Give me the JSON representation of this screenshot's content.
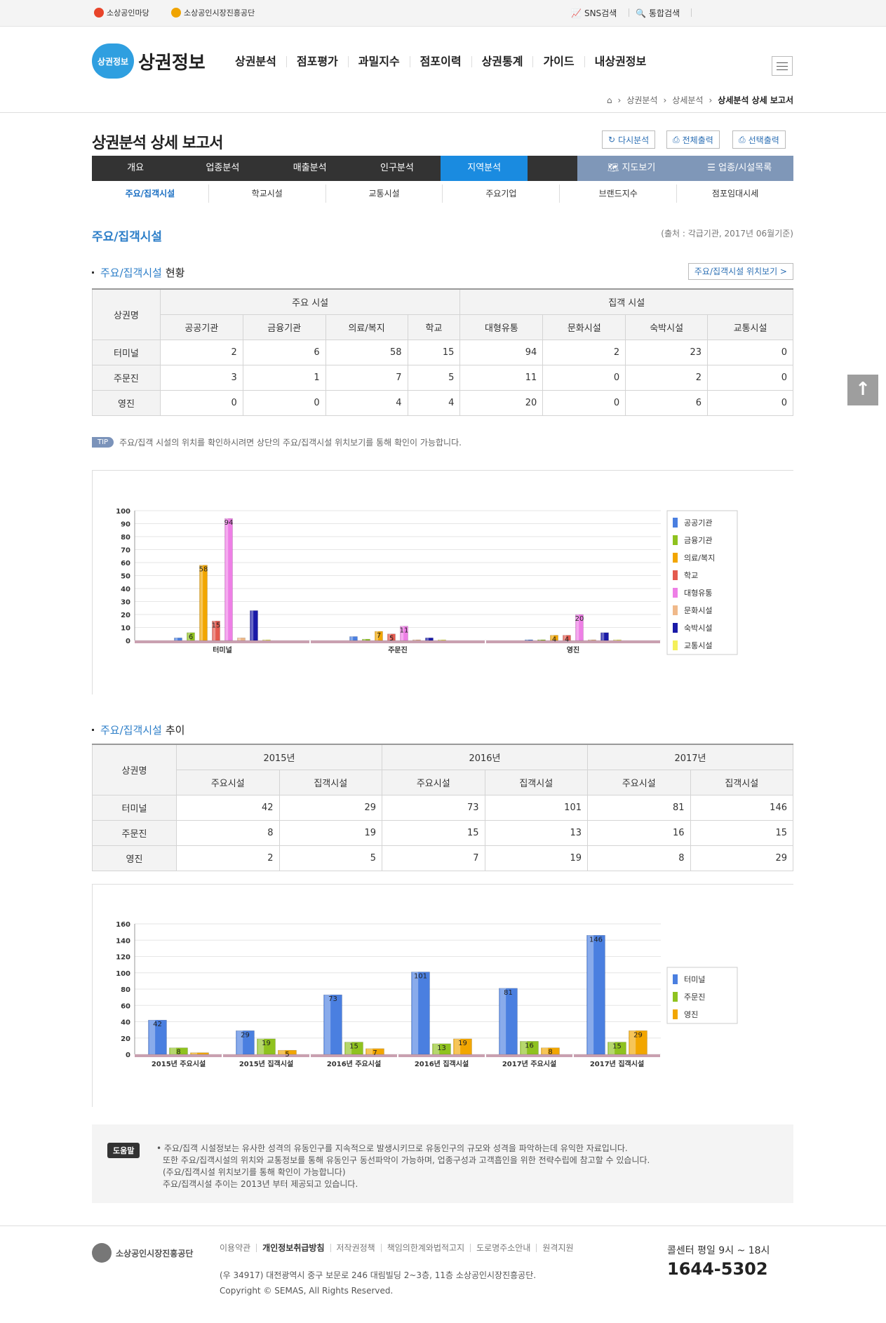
{
  "topbar": {
    "logo1": "소상공인마당",
    "logo2": "소상공인시장진흥공단",
    "sns": "SNS검색",
    "search": "통합검색"
  },
  "header": {
    "badge": "상권정보",
    "brand": "상권정보",
    "menu": [
      "상권분석",
      "점포평가",
      "과밀지수",
      "점포이력",
      "상권통계",
      "가이드",
      "내상권정보"
    ]
  },
  "breadcrumb": [
    "상권분석",
    "상세분석",
    "상세분석 상세 보고서"
  ],
  "page_title": "상권분석 상세 보고서",
  "buttons": {
    "reanalyze": "다시분석",
    "print_all": "전체출력",
    "print_sel": "선택출력"
  },
  "tabs": [
    "개요",
    "업종분석",
    "매출분석",
    "인구분석",
    "지역분석"
  ],
  "tabs_right": [
    "지도보기",
    "업종/시설목록"
  ],
  "subtabs": [
    "주요/집객시설",
    "학교시설",
    "교통시설",
    "주요기업",
    "브랜드지수",
    "점포임대시세"
  ],
  "section": {
    "title": "주요/집객시설",
    "source": "(출처 : 각급기관, 2017년 06월기준)"
  },
  "status": {
    "title_b": "주요/집객시설",
    "title_r": "현황",
    "link": "주요/집객시설 위치보기 >",
    "head_name": "상권명",
    "group1": "주요 시설",
    "group2": "집객 시설",
    "cols": [
      "공공기관",
      "금융기관",
      "의료/복지",
      "학교",
      "대형유통",
      "문화시설",
      "숙박시설",
      "교통시설"
    ],
    "rows": [
      {
        "name": "터미널",
        "vals": [
          "2",
          "6",
          "58",
          "15",
          "94",
          "2",
          "23",
          "0"
        ]
      },
      {
        "name": "주문진",
        "vals": [
          "3",
          "1",
          "7",
          "5",
          "11",
          "0",
          "2",
          "0"
        ]
      },
      {
        "name": "영진",
        "vals": [
          "0",
          "0",
          "4",
          "4",
          "20",
          "0",
          "6",
          "0"
        ]
      }
    ]
  },
  "tip": {
    "badge": "TIP",
    "text": "주요/집객 시설의 위치를 확인하시려면 상단의 주요/집객시설 위치보기를 통해 확인이 가능합니다."
  },
  "trend": {
    "title_b": "주요/집객시설",
    "title_r": "추이",
    "head_name": "상권명",
    "years": [
      "2015년",
      "2016년",
      "2017년"
    ],
    "sub": [
      "주요시설",
      "집객시설"
    ],
    "rows": [
      {
        "name": "터미널",
        "vals": [
          "42",
          "29",
          "73",
          "101",
          "81",
          "146"
        ]
      },
      {
        "name": "주문진",
        "vals": [
          "8",
          "19",
          "15",
          "13",
          "16",
          "15"
        ]
      },
      {
        "name": "영진",
        "vals": [
          "2",
          "5",
          "7",
          "19",
          "8",
          "29"
        ]
      }
    ]
  },
  "chart_data": [
    {
      "type": "bar",
      "categories": [
        "터미널",
        "주문진",
        "영진"
      ],
      "ylim": [
        0,
        100
      ],
      "yticks": [
        0,
        10,
        20,
        30,
        40,
        50,
        60,
        70,
        80,
        90,
        100
      ],
      "legend": "right",
      "grid": true,
      "series": [
        {
          "name": "공공기관",
          "color": "#4a7fe0",
          "values": [
            2,
            3,
            0
          ]
        },
        {
          "name": "금융기관",
          "color": "#8fc21f",
          "values": [
            6,
            1,
            0
          ]
        },
        {
          "name": "의료/복지",
          "color": "#f2a600",
          "values": [
            58,
            7,
            4
          ]
        },
        {
          "name": "학교",
          "color": "#e45a4e",
          "values": [
            15,
            5,
            4
          ]
        },
        {
          "name": "대형유통",
          "color": "#ee7fe6",
          "values": [
            94,
            11,
            20
          ]
        },
        {
          "name": "문화시설",
          "color": "#f0b98a",
          "values": [
            2,
            0,
            0
          ]
        },
        {
          "name": "숙박시설",
          "color": "#1a1aa8",
          "values": [
            23,
            2,
            6
          ]
        },
        {
          "name": "교통시설",
          "color": "#f4f05a",
          "values": [
            0,
            0,
            0
          ]
        }
      ],
      "labels": [
        [
          null,
          6,
          58,
          15,
          94,
          null,
          null,
          null
        ],
        [
          null,
          null,
          7,
          5,
          11,
          null,
          null,
          null
        ],
        [
          null,
          null,
          4,
          4,
          20,
          null,
          null,
          null
        ]
      ]
    },
    {
      "type": "bar",
      "categories": [
        "2015년 주요시설",
        "2015년 집객시설",
        "2016년 주요시설",
        "2016년 집객시설",
        "2017년 주요시설",
        "2017년 집객시설"
      ],
      "ylim": [
        0,
        160
      ],
      "yticks": [
        0,
        20,
        40,
        60,
        80,
        100,
        120,
        140,
        160
      ],
      "legend": "right",
      "grid": true,
      "series": [
        {
          "name": "터미널",
          "color": "#4a7fe0",
          "values": [
            42,
            29,
            73,
            101,
            81,
            146
          ]
        },
        {
          "name": "주문진",
          "color": "#8fc21f",
          "values": [
            8,
            19,
            15,
            13,
            16,
            15
          ]
        },
        {
          "name": "영진",
          "color": "#f2a600",
          "values": [
            2,
            5,
            7,
            19,
            8,
            29
          ]
        }
      ],
      "labels": [
        [
          42,
          8,
          null
        ],
        [
          29,
          19,
          5
        ],
        [
          73,
          15,
          7
        ],
        [
          101,
          13,
          19
        ],
        [
          81,
          16,
          8
        ],
        [
          146,
          15,
          29
        ]
      ]
    }
  ],
  "help": {
    "badge": "도움말",
    "lines": [
      "• 주요/집객 시설정보는 유사한 성격의 유동인구를 지속적으로 발생시키므로 유동인구의 규모와 성격을 파악하는데 유익한 자료입니다.",
      "또한 주요/집객시설의 위치와 교통정보를 통해 유동인구 동선파악이 가능하며, 업종구성과 고객흡인을 위한 전략수립에 참고할 수 있습니다.",
      "(주요/집객시설 위치보기를 통해 확인이 가능합니다)",
      "주요/집객시설 추이는 2013년 부터 제공되고 있습니다."
    ]
  },
  "footer": {
    "org": "소상공인시장진흥공단",
    "links": [
      "이용약관",
      "개인정보취급방침",
      "저작권정책",
      "책임의한계와법적고지",
      "도로명주소안내",
      "원격지원"
    ],
    "address": "(우 34917) 대전광역시 중구 보문로 246 대림빌딩 2~3층, 11층 소상공인시장진흥공단.",
    "copyright": "Copyright © SEMAS, All Rights Reserved.",
    "call_hours": "콜센터 평일 9시 ~ 18시",
    "call_number": "1644-5302"
  }
}
